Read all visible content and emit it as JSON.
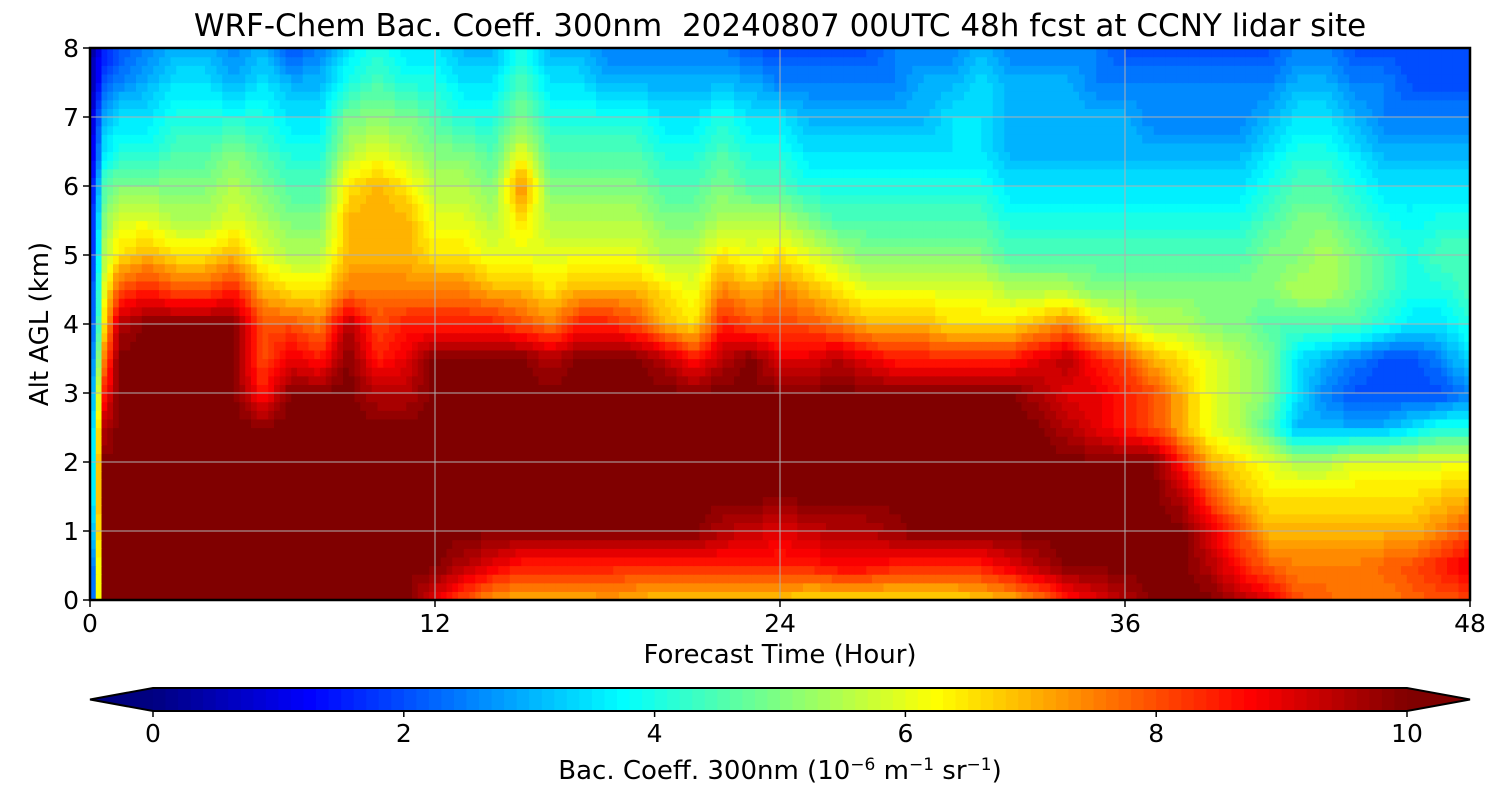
{
  "chart_data": {
    "type": "heatmap",
    "title": "WRF-Chem Bac. Coeff. 300nm  20240807 00UTC 48h fcst at CCNY lidar site",
    "xlabel": "Forecast Time (Hour)",
    "ylabel": "Alt AGL (km)",
    "xlim": [
      0,
      48
    ],
    "ylim": [
      0,
      8
    ],
    "xticks": [
      "0",
      "12",
      "24",
      "36",
      "48"
    ],
    "yticks": [
      "0",
      "1",
      "2",
      "3",
      "4",
      "5",
      "6",
      "7",
      "8"
    ],
    "grid": true,
    "colormap": "jet",
    "vmin": 0,
    "vmax": 10,
    "colorbar": {
      "orientation": "horizontal",
      "extend": "both",
      "ticks": [
        "0",
        "2",
        "4",
        "6",
        "8",
        "10"
      ],
      "label_main": "Bac. Coeff. 300nm  (10",
      "label_exp1": "−6",
      "label_mid1": " m",
      "label_exp2": "−1",
      "label_mid2": " sr",
      "label_exp3": "−1",
      "label_end": ")"
    },
    "x": [
      0,
      0.5,
      1,
      2,
      3,
      4,
      5,
      6,
      7,
      8,
      9,
      10,
      11,
      12,
      13,
      14,
      15,
      16,
      17,
      18,
      19,
      20,
      21,
      22,
      23,
      24,
      25,
      26,
      27,
      28,
      29,
      30,
      31,
      32,
      33,
      34,
      35,
      36,
      37,
      38,
      39,
      40,
      41,
      42,
      43,
      44,
      45,
      46,
      47,
      48
    ],
    "z_levels_km": [
      0,
      0.5,
      1,
      1.5,
      2,
      2.5,
      3,
      3.5,
      4,
      4.5,
      5,
      5.5,
      6,
      6.5,
      7,
      7.5,
      8
    ],
    "values": [
      [
        0.5,
        10,
        10,
        10,
        10,
        10,
        10,
        10,
        10,
        10,
        10,
        10,
        10,
        9.0,
        8.0,
        7.2,
        7.0,
        7.0,
        7.0,
        7.2,
        7.0,
        6.8,
        6.8,
        6.8,
        6.8,
        6.8,
        6.5,
        6.5,
        6.5,
        6.5,
        6.5,
        6.5,
        6.8,
        7.0,
        7.5,
        8.5,
        9.0,
        9.5,
        10,
        10,
        10,
        9.5,
        9.0,
        8.0,
        7.8,
        7.5,
        7.5,
        7.8,
        8.0,
        8.0
      ],
      [
        0.5,
        10,
        10,
        10,
        10,
        10,
        10,
        10,
        10,
        10,
        10,
        10,
        10,
        10,
        9.5,
        9.0,
        8.5,
        8.5,
        8.5,
        8.5,
        8.3,
        8.3,
        8.5,
        8.5,
        8.5,
        8.5,
        8.5,
        8.8,
        8.8,
        8.5,
        8.5,
        8.5,
        8.5,
        9.0,
        9.5,
        10,
        10,
        10,
        10,
        10,
        9.5,
        8.5,
        7.8,
        7.5,
        7.5,
        7.5,
        7.8,
        8.0,
        8.5,
        9.0
      ],
      [
        1.5,
        10,
        10,
        10,
        10,
        10,
        10,
        10,
        10,
        10,
        10,
        10,
        10,
        10,
        10,
        10,
        10,
        10,
        10,
        10,
        10,
        10,
        10,
        9.5,
        9.3,
        9.0,
        9.3,
        9.5,
        9.5,
        9.8,
        10,
        10,
        10,
        10,
        10,
        10,
        10,
        10,
        10,
        10,
        9.0,
        8.0,
        7.0,
        7.0,
        7.0,
        7.0,
        7.0,
        7.0,
        7.5,
        8.0
      ],
      [
        2.0,
        10,
        10,
        10,
        10,
        10,
        10,
        10,
        10,
        10,
        10,
        10,
        10,
        10,
        10,
        10,
        10,
        10,
        10,
        10,
        10,
        10,
        10,
        10,
        10,
        10,
        10,
        10,
        10,
        10,
        10,
        10,
        10,
        10,
        10,
        10,
        10,
        10,
        10,
        9.5,
        8.0,
        7.0,
        6.5,
        6.5,
        6.5,
        6.5,
        6.5,
        6.5,
        6.8,
        7.0
      ],
      [
        2.0,
        10,
        10,
        10,
        10,
        10,
        10,
        10,
        10,
        10,
        10,
        10,
        10,
        10,
        10,
        10,
        10,
        10,
        10,
        10,
        10,
        10,
        10,
        10,
        10,
        10,
        10,
        10,
        10,
        10,
        10,
        10,
        10,
        10,
        10,
        10,
        10,
        10,
        10,
        8.5,
        7.0,
        6.5,
        6.0,
        5.5,
        5.5,
        6.0,
        6.0,
        6.0,
        6.0,
        6.0
      ],
      [
        2.0,
        9.5,
        10,
        10,
        10,
        10,
        10,
        10,
        10,
        10,
        10,
        10,
        10,
        10,
        10,
        10,
        10,
        10,
        10,
        10,
        10,
        10,
        10,
        10,
        10,
        10,
        10,
        10,
        10,
        10,
        10,
        10,
        10,
        10,
        10,
        9.5,
        9.0,
        8.5,
        8.0,
        7.0,
        6.0,
        5.5,
        4.5,
        3.0,
        3.0,
        3.0,
        3.0,
        3.5,
        4.0,
        4.0
      ],
      [
        1.8,
        8.5,
        10,
        10,
        10,
        10,
        10,
        8.5,
        10,
        10,
        10,
        9.5,
        9.5,
        10,
        10,
        10,
        10,
        10,
        10,
        10,
        10,
        10,
        10,
        10,
        10,
        10,
        10,
        10,
        10,
        10,
        10,
        10,
        10,
        10,
        9.5,
        9.0,
        9.0,
        8.5,
        8.0,
        7.0,
        6.0,
        5.5,
        5.0,
        3.5,
        2.5,
        2.0,
        2.0,
        2.0,
        2.0,
        2.5
      ],
      [
        1.5,
        7.5,
        10,
        10,
        10,
        10,
        10,
        8.0,
        9.0,
        8.5,
        10,
        8.5,
        9.0,
        10,
        10,
        10,
        10,
        9.5,
        10,
        10,
        10,
        9.5,
        8.5,
        9.5,
        10,
        9.0,
        9.0,
        9.5,
        9.0,
        8.5,
        8.5,
        8.5,
        8.5,
        8.5,
        9.0,
        9.5,
        8.5,
        8.0,
        7.0,
        6.5,
        6.0,
        5.5,
        5.0,
        3.5,
        3.0,
        2.5,
        2.0,
        2.0,
        2.5,
        3.5
      ],
      [
        1.2,
        6.5,
        9.5,
        10,
        10,
        10,
        10,
        8.0,
        8.0,
        7.5,
        9.5,
        8.0,
        8.5,
        8.5,
        8.5,
        8.5,
        8.0,
        7.5,
        8.5,
        8.5,
        8.0,
        7.0,
        6.5,
        8.5,
        8.0,
        8.0,
        8.0,
        7.5,
        7.0,
        7.0,
        7.0,
        6.5,
        6.5,
        6.5,
        7.0,
        7.5,
        6.5,
        6.0,
        5.5,
        5.5,
        5.0,
        5.0,
        4.5,
        4.5,
        4.5,
        4.5,
        4.0,
        3.5,
        3.5,
        4.0
      ],
      [
        1.2,
        6.0,
        8.0,
        8.5,
        8.0,
        8.0,
        8.5,
        7.0,
        6.5,
        6.5,
        7.5,
        7.5,
        7.5,
        7.5,
        7.5,
        7.0,
        7.0,
        6.5,
        7.0,
        7.0,
        7.0,
        6.5,
        6.0,
        7.5,
        7.0,
        7.5,
        7.0,
        6.5,
        6.0,
        6.0,
        6.0,
        6.0,
        6.0,
        5.5,
        5.5,
        5.5,
        5.0,
        5.0,
        5.0,
        5.0,
        5.0,
        5.0,
        5.0,
        5.5,
        5.5,
        5.0,
        4.5,
        4.0,
        4.0,
        4.5
      ],
      [
        1.0,
        5.5,
        6.5,
        7.0,
        6.5,
        6.5,
        7.0,
        6.0,
        5.5,
        5.5,
        7.0,
        7.0,
        7.0,
        6.5,
        6.5,
        6.0,
        6.0,
        6.0,
        6.0,
        6.0,
        6.0,
        5.5,
        5.5,
        6.5,
        6.0,
        6.5,
        6.0,
        5.5,
        5.0,
        5.0,
        5.0,
        5.0,
        5.0,
        4.5,
        4.5,
        4.5,
        4.5,
        4.5,
        4.5,
        4.5,
        4.5,
        4.5,
        5.0,
        5.0,
        5.5,
        5.0,
        4.5,
        4.0,
        4.5,
        4.5
      ],
      [
        1.0,
        5.0,
        6.0,
        6.0,
        5.5,
        5.5,
        6.0,
        5.5,
        5.0,
        5.0,
        7.0,
        7.0,
        7.0,
        6.0,
        6.0,
        5.5,
        6.5,
        5.5,
        5.5,
        5.5,
        5.5,
        5.0,
        5.0,
        5.5,
        5.5,
        5.5,
        5.0,
        4.5,
        4.5,
        4.5,
        4.5,
        4.5,
        4.5,
        4.0,
        4.0,
        4.0,
        4.0,
        4.0,
        4.0,
        4.0,
        4.0,
        4.0,
        4.5,
        5.0,
        5.0,
        4.5,
        4.0,
        3.8,
        4.0,
        4.0
      ],
      [
        0.8,
        4.5,
        5.0,
        5.0,
        5.0,
        5.0,
        5.5,
        5.0,
        4.5,
        4.5,
        6.5,
        7.0,
        6.5,
        5.5,
        5.5,
        5.0,
        7.5,
        5.0,
        5.0,
        5.0,
        5.0,
        4.5,
        4.5,
        5.0,
        4.5,
        4.5,
        4.0,
        4.0,
        4.0,
        4.0,
        4.0,
        4.0,
        4.0,
        3.5,
        3.5,
        3.5,
        3.5,
        3.5,
        3.5,
        3.5,
        3.5,
        3.5,
        4.0,
        4.5,
        4.5,
        4.0,
        3.5,
        3.5,
        3.5,
        3.5
      ],
      [
        0.7,
        3.5,
        4.0,
        4.0,
        4.5,
        4.5,
        5.0,
        4.5,
        4.0,
        4.0,
        5.5,
        6.0,
        5.5,
        5.0,
        5.0,
        4.5,
        6.0,
        4.5,
        4.5,
        4.5,
        4.5,
        4.0,
        4.0,
        4.5,
        4.0,
        4.0,
        3.5,
        3.5,
        3.5,
        3.5,
        3.5,
        3.5,
        3.5,
        3.0,
        3.0,
        3.0,
        3.0,
        3.0,
        3.0,
        3.0,
        3.0,
        3.0,
        3.5,
        4.0,
        4.0,
        3.5,
        3.0,
        3.0,
        3.0,
        3.0
      ],
      [
        0.5,
        3.0,
        3.5,
        3.5,
        4.0,
        4.0,
        4.0,
        4.0,
        3.5,
        3.5,
        5.0,
        5.0,
        5.0,
        4.5,
        4.0,
        4.0,
        5.0,
        4.0,
        4.0,
        4.0,
        4.0,
        3.5,
        3.5,
        4.0,
        3.5,
        3.5,
        3.0,
        3.0,
        3.0,
        3.0,
        3.0,
        3.5,
        3.5,
        3.0,
        3.0,
        3.0,
        3.0,
        3.0,
        2.5,
        2.5,
        2.5,
        2.5,
        3.0,
        3.5,
        3.5,
        3.0,
        2.5,
        2.5,
        2.5,
        2.5
      ],
      [
        0.3,
        2.0,
        2.5,
        3.0,
        3.5,
        3.5,
        3.0,
        3.5,
        3.0,
        3.0,
        4.0,
        4.5,
        4.0,
        4.0,
        3.5,
        3.5,
        4.5,
        3.5,
        3.5,
        3.0,
        3.0,
        3.0,
        3.0,
        3.0,
        3.0,
        2.5,
        2.5,
        2.5,
        2.5,
        2.5,
        3.0,
        3.0,
        3.5,
        3.0,
        3.0,
        3.0,
        2.5,
        2.5,
        2.5,
        2.5,
        2.5,
        2.5,
        2.5,
        3.0,
        3.0,
        2.5,
        2.5,
        2.0,
        2.0,
        2.0
      ],
      [
        0.2,
        1.5,
        2.0,
        2.5,
        3.0,
        3.0,
        2.5,
        3.0,
        2.0,
        2.5,
        3.5,
        4.0,
        3.5,
        3.5,
        3.0,
        3.0,
        4.0,
        3.0,
        3.0,
        2.5,
        2.5,
        2.5,
        2.5,
        2.5,
        2.0,
        2.0,
        2.0,
        2.0,
        2.0,
        2.5,
        2.5,
        2.5,
        3.0,
        2.5,
        2.5,
        2.5,
        2.5,
        2.0,
        2.0,
        2.0,
        2.0,
        2.0,
        2.0,
        2.5,
        2.5,
        2.0,
        2.0,
        2.0,
        2.0,
        2.0
      ]
    ]
  }
}
